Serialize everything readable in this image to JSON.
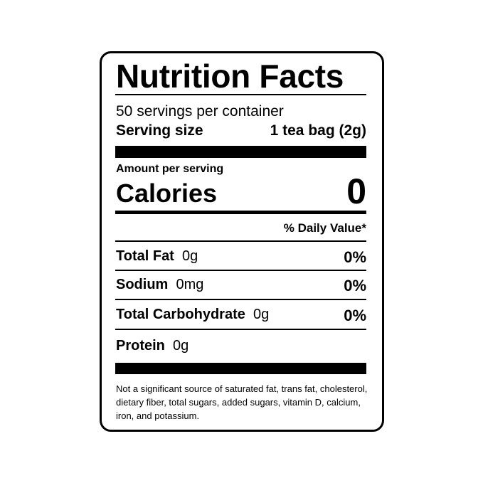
{
  "label": {
    "title": "Nutrition Facts",
    "servings_per_container": "50 servings per container",
    "serving_size_label": "Serving size",
    "serving_size_value": "1 tea bag (2g)",
    "amount_per_serving": "Amount per serving",
    "calories_label": "Calories",
    "calories_value": "0",
    "daily_value_header": "% Daily Value*",
    "nutrients": [
      {
        "name": "Total Fat",
        "amount": "0g",
        "dv": "0%"
      },
      {
        "name": "Sodium",
        "amount": "0mg",
        "dv": "0%"
      },
      {
        "name": "Total Carbohydrate",
        "amount": "0g",
        "dv": "0%"
      },
      {
        "name": "Protein",
        "amount": "0g"
      }
    ],
    "footnote": "Not a significant source of saturated fat, trans fat, cholesterol, dietary fiber, total sugars, added sugars, vitamin D, calcium, iron, and potassium."
  }
}
